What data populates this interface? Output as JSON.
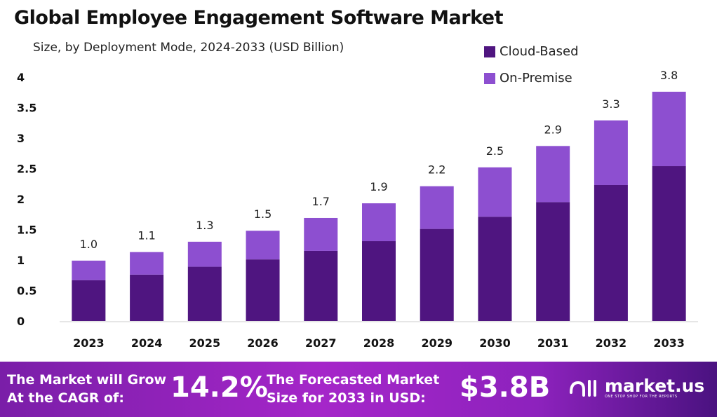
{
  "chart_data": {
    "type": "bar",
    "stacked": true,
    "title": "Global Employee Engagement Software Market",
    "subtitle": "Size, by Deployment Mode, 2024-2033 (USD Billion)",
    "xlabel": "",
    "ylabel": "",
    "ylim": [
      0,
      4
    ],
    "yticks": [
      "0",
      "0.5",
      "1",
      "1.5",
      "2",
      "2.5",
      "3",
      "3.5",
      "4"
    ],
    "grid": false,
    "legend_position": "top-right",
    "categories": [
      "2023",
      "2024",
      "2025",
      "2026",
      "2027",
      "2028",
      "2029",
      "2030",
      "2031",
      "2032",
      "2033"
    ],
    "series": [
      {
        "name": "Cloud-Based",
        "color": "#4f1580",
        "values": [
          0.67,
          0.76,
          0.89,
          1.01,
          1.15,
          1.31,
          1.51,
          1.71,
          1.95,
          2.23,
          2.54
        ]
      },
      {
        "name": "On-Premise",
        "color": "#8d4fd0",
        "values": [
          0.32,
          0.37,
          0.41,
          0.47,
          0.54,
          0.62,
          0.7,
          0.81,
          0.92,
          1.06,
          1.22
        ]
      }
    ],
    "total_labels": [
      "1.0",
      "1.1",
      "1.3",
      "1.5",
      "1.7",
      "1.9",
      "2.2",
      "2.5",
      "2.9",
      "3.3",
      "3.8"
    ]
  },
  "footer": {
    "cagr_text_1": "The Market will Grow",
    "cagr_text_2": "At the CAGR of:",
    "cagr_value": "14.2%",
    "forecast_text_1": "The Forecasted Market",
    "forecast_text_2": "Size for 2033 in USD:",
    "forecast_value": "$3.8B",
    "logo_name": "market.us",
    "logo_tagline": "ONE STOP SHOP FOR THE REPORTS"
  }
}
